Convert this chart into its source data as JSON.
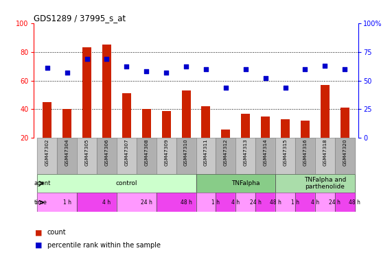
{
  "title": "GDS1289 / 37995_s_at",
  "samples": [
    "GSM47302",
    "GSM47304",
    "GSM47305",
    "GSM47306",
    "GSM47307",
    "GSM47308",
    "GSM47309",
    "GSM47310",
    "GSM47311",
    "GSM47312",
    "GSM47313",
    "GSM47314",
    "GSM47315",
    "GSM47316",
    "GSM47318",
    "GSM47320"
  ],
  "counts": [
    45,
    40,
    83,
    85,
    51,
    40,
    39,
    53,
    42,
    26,
    37,
    35,
    33,
    32,
    57,
    41
  ],
  "percentiles": [
    61,
    57,
    69,
    69,
    62,
    58,
    57,
    62,
    60,
    44,
    60,
    52,
    44,
    60,
    63,
    60
  ],
  "ylim_left": [
    20,
    100
  ],
  "ylim_right": [
    0,
    100
  ],
  "yticks_left": [
    20,
    40,
    60,
    80,
    100
  ],
  "yticks_right": [
    0,
    25,
    50,
    75,
    100
  ],
  "bar_color": "#CC2200",
  "dot_color": "#0000CC",
  "agent_groups": [
    {
      "label": "control",
      "start": 0,
      "end": 8,
      "color": "#CCFFCC"
    },
    {
      "label": "TNFalpha",
      "start": 8,
      "end": 12,
      "color": "#88CC88"
    },
    {
      "label": "TNFalpha and\nparthenolide",
      "start": 12,
      "end": 16,
      "color": "#AADDAA"
    }
  ],
  "time_groups": [
    {
      "label": "1 h",
      "start": 0,
      "end": 2,
      "color": "#FF99FF"
    },
    {
      "label": "4 h",
      "start": 2,
      "end": 4,
      "color": "#EE44EE"
    },
    {
      "label": "24 h",
      "start": 4,
      "end": 6,
      "color": "#FF99FF"
    },
    {
      "label": "48 h",
      "start": 6,
      "end": 8,
      "color": "#EE44EE"
    },
    {
      "label": "1 h",
      "start": 8,
      "end": 9,
      "color": "#FF99FF"
    },
    {
      "label": "4 h",
      "start": 9,
      "end": 10,
      "color": "#EE44EE"
    },
    {
      "label": "24 h",
      "start": 10,
      "end": 11,
      "color": "#FF99FF"
    },
    {
      "label": "48 h",
      "start": 11,
      "end": 12,
      "color": "#EE44EE"
    },
    {
      "label": "1 h",
      "start": 12,
      "end": 13,
      "color": "#FF99FF"
    },
    {
      "label": "4 h",
      "start": 13,
      "end": 14,
      "color": "#EE44EE"
    },
    {
      "label": "24 h",
      "start": 14,
      "end": 15,
      "color": "#FF99FF"
    },
    {
      "label": "48 h",
      "start": 15,
      "end": 16,
      "color": "#EE44EE"
    }
  ],
  "legend_items": [
    {
      "label": "count",
      "color": "#CC2200"
    },
    {
      "label": "percentile rank within the sample",
      "color": "#0000CC"
    }
  ]
}
